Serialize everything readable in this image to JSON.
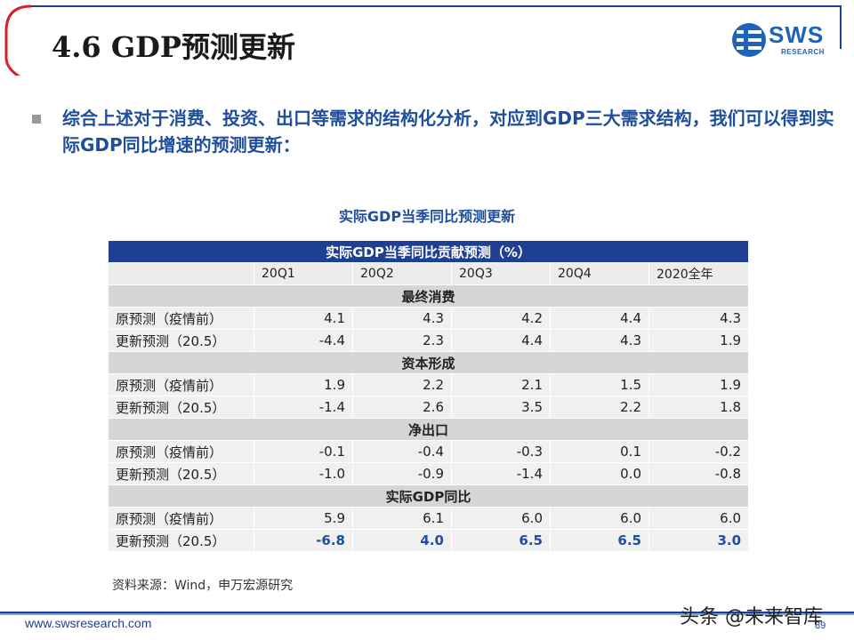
{
  "slide": {
    "title": "4.6 GDP预测更新",
    "logo_text": "SWS",
    "logo_sub": "RESEARCH",
    "bullet": "综合上述对于消费、投资、出口等需求的结构化分析，对应到GDP三大需求结构，我们可以得到实际GDP同比增速的预测更新：",
    "table_title": "实际GDP当季同比预测更新",
    "source": "资料来源：Wind，申万宏源研究",
    "footer_url": "www.swsresearch.com",
    "watermark": "头条 @未来智库",
    "page_number": "89"
  },
  "colors": {
    "accent": "#1e3f93",
    "text_blue": "#1f4e9b",
    "red_line": "#d42027"
  },
  "table": {
    "header": "实际GDP当季同比贡献预测（%）",
    "columns": [
      "20Q1",
      "20Q2",
      "20Q3",
      "20Q4",
      "2020全年"
    ],
    "sections": [
      {
        "name": "最终消费",
        "rows": [
          {
            "label": "原预测（疫情前）",
            "values": [
              "4.1",
              "4.3",
              "4.2",
              "4.4",
              "4.3"
            ]
          },
          {
            "label": "更新预测（20.5）",
            "values": [
              "-4.4",
              "2.3",
              "4.4",
              "4.3",
              "1.9"
            ]
          }
        ]
      },
      {
        "name": "资本形成",
        "rows": [
          {
            "label": "原预测（疫情前）",
            "values": [
              "1.9",
              "2.2",
              "2.1",
              "1.5",
              "1.9"
            ]
          },
          {
            "label": "更新预测（20.5）",
            "values": [
              "-1.4",
              "2.6",
              "3.5",
              "2.2",
              "1.8"
            ]
          }
        ]
      },
      {
        "name": "净出口",
        "rows": [
          {
            "label": "原预测（疫情前）",
            "values": [
              "-0.1",
              "-0.4",
              "-0.3",
              "0.1",
              "-0.2"
            ]
          },
          {
            "label": "更新预测（20.5）",
            "values": [
              "-1.0",
              "-0.9",
              "-1.4",
              "0.0",
              "-0.8"
            ]
          }
        ]
      },
      {
        "name": "实际GDP同比",
        "rows": [
          {
            "label": "原预测（疫情前）",
            "values": [
              "5.9",
              "6.1",
              "6.0",
              "6.0",
              "6.0"
            ]
          },
          {
            "label": "更新预测（20.5）",
            "values": [
              "-6.8",
              "4.0",
              "6.5",
              "6.5",
              "3.0"
            ]
          }
        ]
      }
    ]
  }
}
